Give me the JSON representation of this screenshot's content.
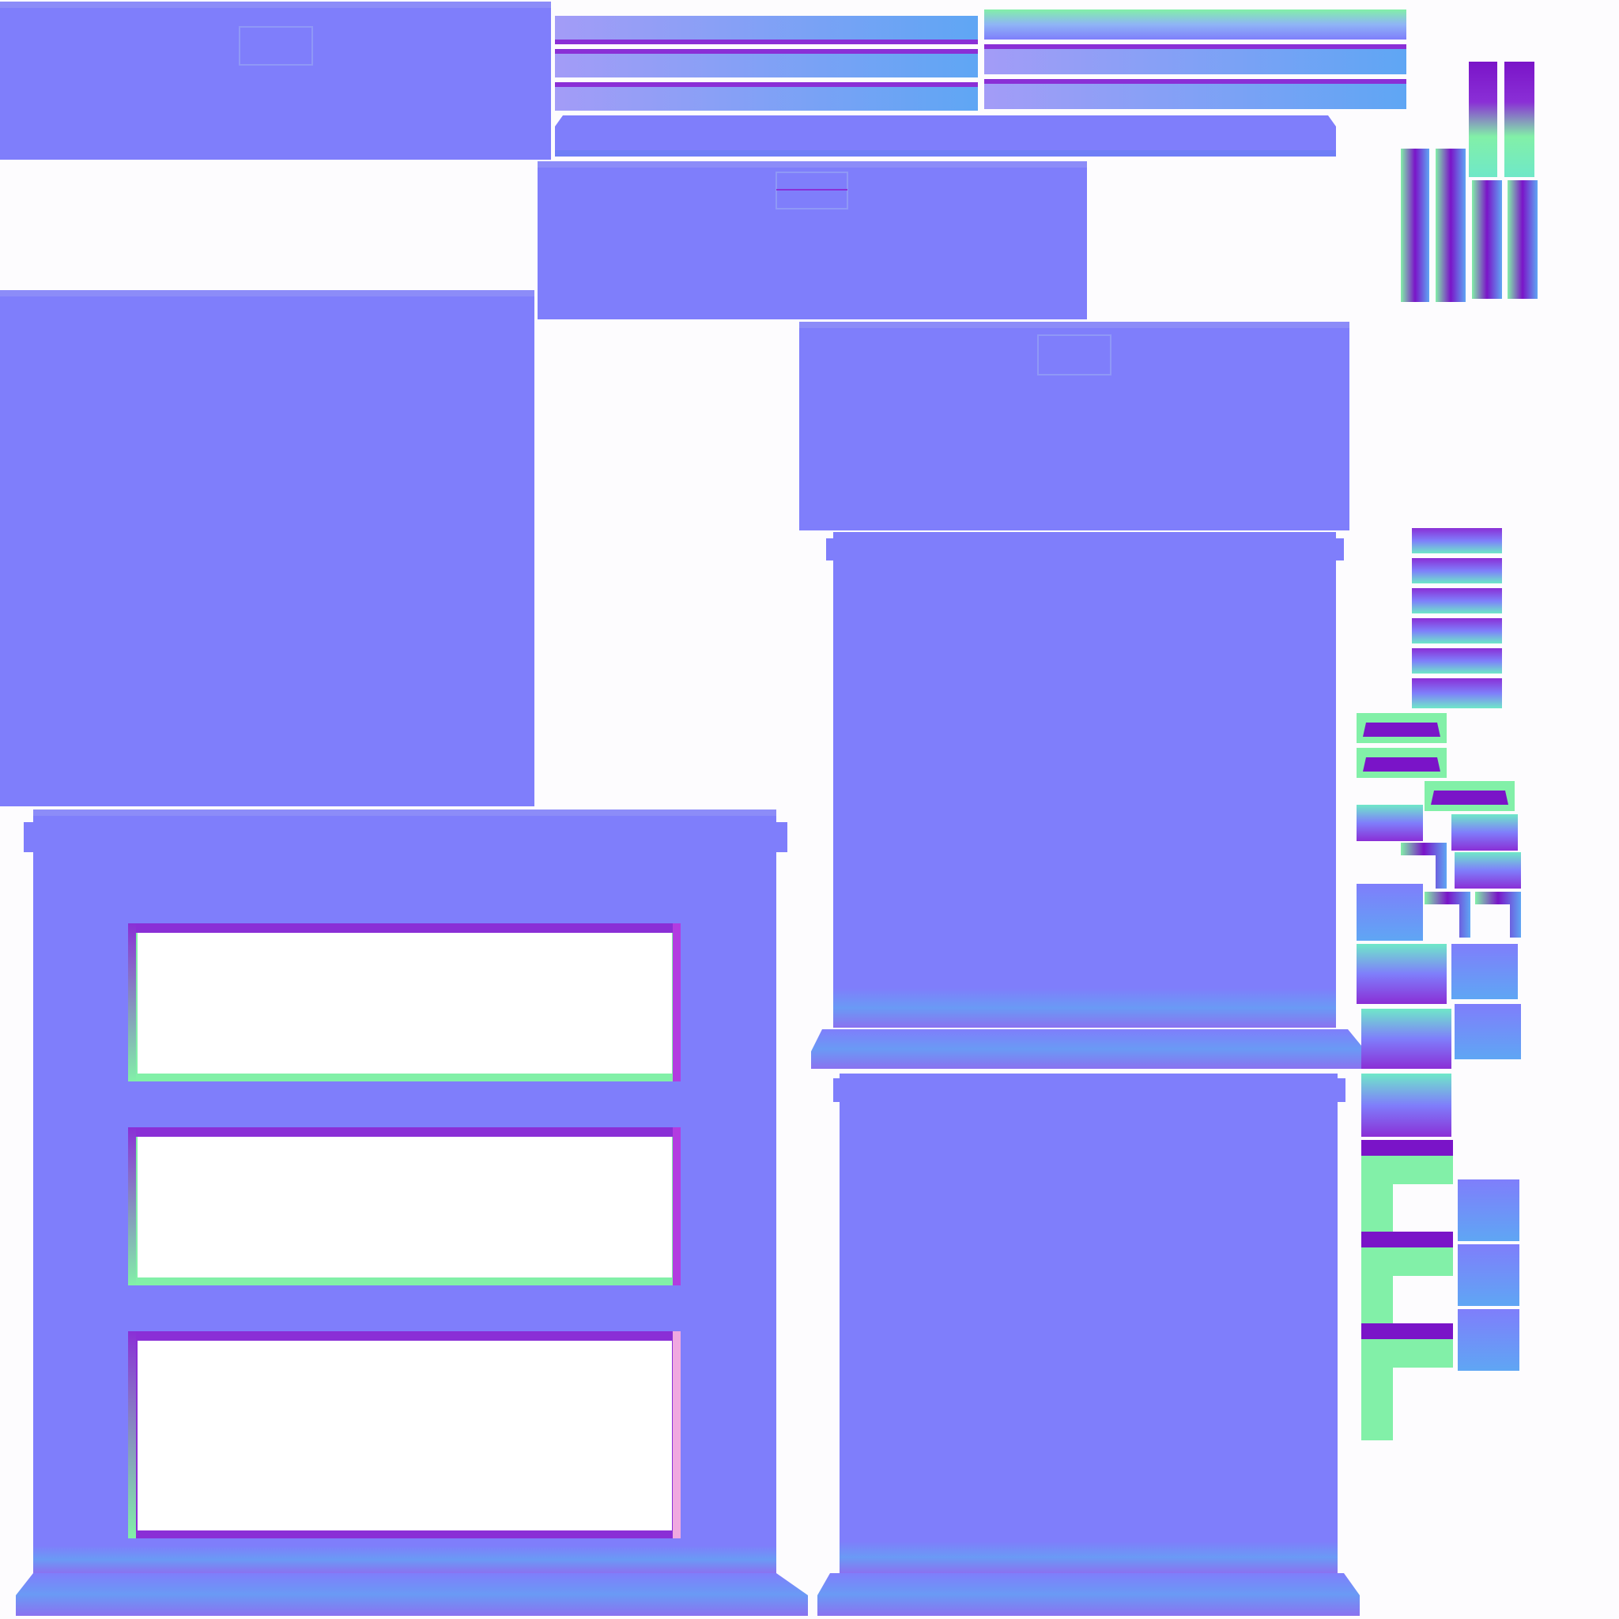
{
  "texture": {
    "kind": "normal-map-uv-atlas",
    "colors": {
      "background": "#fdfcfe",
      "flat_normal": "#7f7efb",
      "edge_purple": "#8a2fd6",
      "edge_green": "#82f0a8",
      "edge_teal": "#6fe8c8",
      "edge_blue": "#5fa6f4",
      "edge_lilac": "#a39cf7",
      "edge_pink": "#f0a8e0",
      "deep_violet": "#7a14c8"
    }
  }
}
